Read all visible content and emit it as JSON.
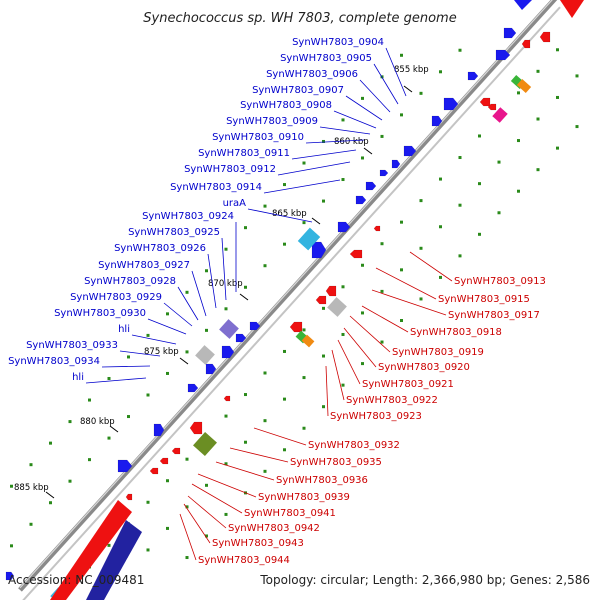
{
  "title": "Synechococcus sp. WH 7803, complete genome",
  "footer": {
    "accession": "Accession: NC_009481",
    "summary": "Topology: circular; Length: 2,366,980 bp; Genes: 2,586"
  },
  "colors": {
    "forward_label": "#0000cc",
    "reverse_label": "#cc0000",
    "backbone": "#8a8a8a",
    "forward_cds": "#1a1aee",
    "reverse_cds": "#ee1111",
    "tick": "#2a8a1a",
    "rrna": "#2222a0"
  },
  "ticks": [
    {
      "label": "855 kbp"
    },
    {
      "label": "860 kbp"
    },
    {
      "label": "865 kbp"
    },
    {
      "label": "870 kbp"
    },
    {
      "label": "875 kbp"
    },
    {
      "label": "880 kbp"
    },
    {
      "label": "885 kbp"
    }
  ],
  "forward_labels": [
    "SynWH7803_0904",
    "SynWH7803_0905",
    "SynWH7803_0906",
    "SynWH7803_0907",
    "SynWH7803_0908",
    "SynWH7803_0909",
    "SynWH7803_0910",
    "SynWH7803_0911",
    "SynWH7803_0912",
    "SynWH7803_0914",
    "uraA",
    "SynWH7803_0924",
    "SynWH7803_0925",
    "SynWH7803_0926",
    "SynWH7803_0927",
    "SynWH7803_0928",
    "SynWH7803_0929",
    "SynWH7803_0930",
    "hli",
    "SynWH7803_0933",
    "SynWH7803_0934",
    "hli"
  ],
  "reverse_labels": [
    "SynWH7803_0913",
    "SynWH7803_0915",
    "SynWH7803_0917",
    "SynWH7803_0918",
    "SynWH7803_0919",
    "SynWH7803_0920",
    "SynWH7803_0921",
    "SynWH7803_0922",
    "SynWH7803_0923",
    "SynWH7803_0932",
    "SynWH7803_0935",
    "SynWH7803_0936",
    "SynWH7803_0939",
    "SynWH7803_0941",
    "SynWH7803_0942",
    "SynWH7803_0943",
    "SynWH7803_0944"
  ]
}
